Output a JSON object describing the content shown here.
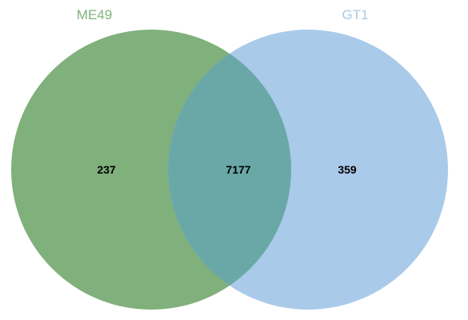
{
  "venn": {
    "sets": [
      {
        "name": "ME49",
        "color": "#80b07b",
        "label_color": "#7fb57a"
      },
      {
        "name": "GT1",
        "color": "#aacaea",
        "label_color": "#a9c9e8"
      }
    ],
    "overlap_color": "#6aa8a8",
    "counts": {
      "only_a": "237",
      "both": "7177",
      "only_b": "359"
    }
  }
}
